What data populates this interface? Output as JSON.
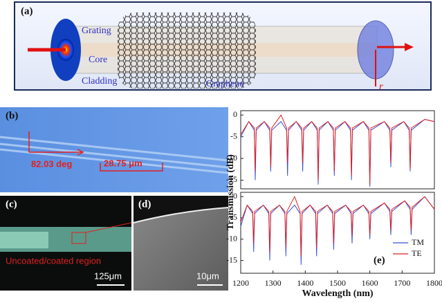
{
  "panels": {
    "a": {
      "label": "(a)",
      "grating": "Grating",
      "core": "Core",
      "cladding": "Cladding",
      "graphene": "Graphene",
      "axis": "r"
    },
    "b": {
      "label": "(b)",
      "angle": "82.03 deg",
      "period": "28.75 μm"
    },
    "c": {
      "label": "(c)",
      "region": "Uncoated/coated region",
      "scale": "125μm"
    },
    "d": {
      "label": "(d)",
      "scale": "10μm"
    }
  },
  "chart_data": [
    {
      "type": "line",
      "y_label": "Transmission (dB)",
      "x": [
        1200,
        1225,
        1242,
        1245,
        1248,
        1273,
        1290,
        1293,
        1296,
        1325,
        1342,
        1345,
        1348,
        1372,
        1389,
        1392,
        1395,
        1420,
        1437,
        1440,
        1443,
        1470,
        1487,
        1490,
        1493,
        1523,
        1540,
        1543,
        1546,
        1580,
        1597,
        1600,
        1603,
        1645,
        1662,
        1665,
        1668,
        1705,
        1722,
        1725,
        1728,
        1770,
        1800
      ],
      "series": [
        {
          "color": "#3a4fd6",
          "values": [
            -5,
            -1.5,
            -3.5,
            -15,
            -3.5,
            -1.5,
            -3.5,
            -13,
            -3.5,
            -1.5,
            -3.5,
            -14,
            -3.5,
            -1.5,
            -3.5,
            -13,
            -3.5,
            -1.5,
            -3.5,
            -16,
            -3.5,
            -1.5,
            -3.5,
            -14,
            -3.5,
            -1.5,
            -3.5,
            -15,
            -3.5,
            -1.5,
            -3.5,
            -16.5,
            -3.5,
            -1.5,
            -3.5,
            -12,
            -3.5,
            -1.5,
            -3.5,
            -13,
            -3.5,
            -1,
            -1.5
          ]
        },
        {
          "color": "#e02020",
          "values": [
            -4.5,
            -1.5,
            -3,
            -13,
            -3,
            -1.5,
            -3,
            -12,
            -3,
            0,
            -3,
            -11,
            -3,
            -1.5,
            -3,
            -11,
            -3,
            -1.5,
            -3,
            -15,
            -3,
            -1.5,
            -3,
            -13,
            -3,
            -1.5,
            -3,
            -14,
            -3,
            -1.5,
            -3,
            -16,
            -3,
            -1.5,
            -3,
            -11,
            -3,
            -1.5,
            -3,
            -12.5,
            -3,
            -1,
            -1.5
          ]
        }
      ],
      "xlim": [
        1200,
        1800
      ],
      "ylim": [
        -17,
        1
      ],
      "yticks": [
        -15,
        -10,
        -5,
        0
      ]
    },
    {
      "type": "line",
      "x_label": "Wavelength (nm)",
      "annotation": "(e)",
      "legend": "lower right",
      "x": [
        1200,
        1220,
        1237,
        1240,
        1243,
        1270,
        1287,
        1290,
        1293,
        1320,
        1337,
        1340,
        1343,
        1367,
        1384,
        1387,
        1390,
        1415,
        1432,
        1435,
        1438,
        1468,
        1485,
        1488,
        1491,
        1525,
        1542,
        1545,
        1548,
        1580,
        1597,
        1600,
        1603,
        1645,
        1662,
        1665,
        1668,
        1708,
        1725,
        1728,
        1731,
        1770,
        1800
      ],
      "series": [
        {
          "name": "TM",
          "color": "#3a4fd6",
          "values": [
            -7,
            -2,
            -4,
            -13,
            -4,
            -2,
            -4,
            -15,
            -4,
            -2,
            -4,
            -14,
            -4,
            -2,
            -4,
            -16,
            -4,
            -2,
            -4,
            -14,
            -4,
            -2,
            -4,
            -12.5,
            -4,
            -2,
            -4,
            -11,
            -4,
            -2,
            -4,
            -10,
            -4,
            -1.5,
            -3.5,
            -9,
            -3.5,
            -1,
            -3,
            -9,
            -3,
            0,
            -3
          ]
        },
        {
          "name": "TE",
          "color": "#e02020",
          "values": [
            -6,
            -2,
            -3.5,
            -11,
            -3.5,
            -2,
            -3.5,
            -13,
            -3.5,
            -2,
            -3.5,
            -12,
            -3.5,
            0,
            -3.5,
            -14,
            -3.5,
            -2,
            -3.5,
            -12,
            -3.5,
            -2,
            -3.5,
            -11,
            -3.5,
            -2,
            -3.5,
            -9,
            -3.5,
            -2,
            -3.5,
            -9,
            -3.5,
            -1.5,
            -3,
            -8,
            -3,
            -1,
            -2.5,
            -8,
            -2.5,
            0,
            -3
          ]
        }
      ],
      "xlim": [
        1200,
        1800
      ],
      "ylim": [
        -18,
        1
      ],
      "xticks": [
        1200,
        1300,
        1400,
        1500,
        1600,
        1700,
        1800
      ],
      "yticks": [
        -15,
        -10,
        -5,
        0
      ]
    }
  ]
}
